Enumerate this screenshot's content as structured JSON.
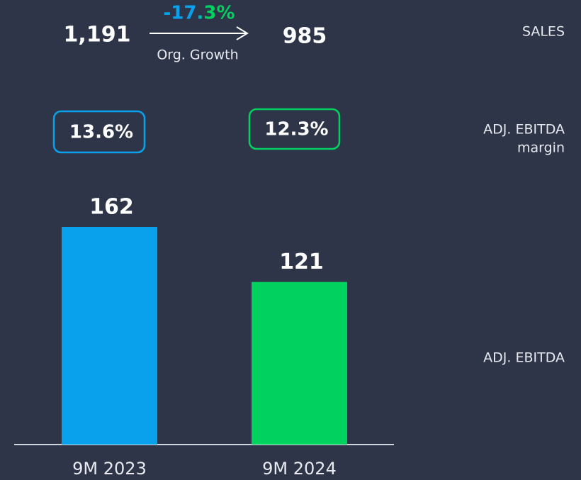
{
  "chart_data": {
    "type": "bar",
    "categories": [
      "9M 2023",
      "9M 2024"
    ],
    "values": [
      162,
      121
    ],
    "colors": [
      "#0aa1ec",
      "#00d15f"
    ],
    "row_label": "ADJ. EBITDA",
    "sales": {
      "label": "SALES",
      "values": [
        1191,
        985
      ],
      "value_labels": [
        "1,191",
        "985"
      ],
      "growth": -17.3,
      "growth_label": "-17.3%",
      "growth_caption": "Org. Growth"
    },
    "margin": {
      "label": [
        "ADJ. EBITDA",
        "margin"
      ],
      "values": [
        13.6,
        12.3
      ],
      "value_labels": [
        "13.6%",
        "12.3%"
      ]
    }
  }
}
